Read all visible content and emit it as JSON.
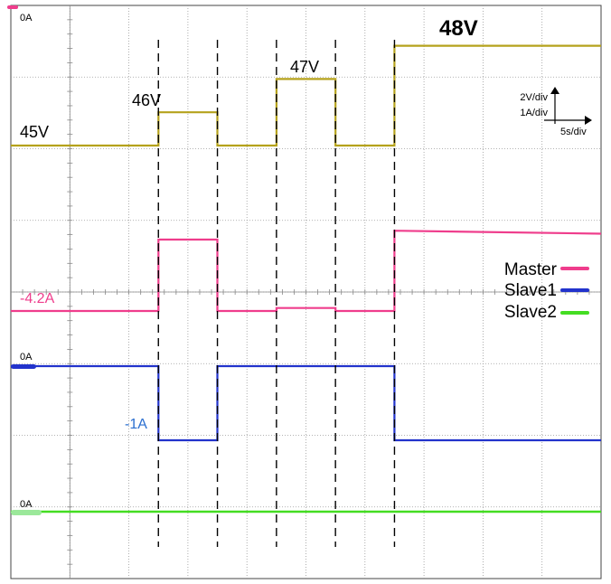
{
  "chart_data": {
    "type": "line",
    "x_unit": "s",
    "time_scale": "5s/div",
    "x_range": [
      -12.5,
      37.5
    ],
    "transitions_s": [
      0,
      5,
      10,
      15,
      20
    ],
    "scale_labels": {
      "voltage": "2V/div",
      "current": "1A/div",
      "time": "5s/div"
    },
    "series": [
      {
        "key": "voltage",
        "color": "#b5a21c",
        "unit": "V",
        "scale_per_div": 2,
        "points": [
          [
            -12.5,
            45
          ],
          [
            0,
            45
          ],
          [
            0,
            46
          ],
          [
            5,
            46
          ],
          [
            5,
            45
          ],
          [
            10,
            45
          ],
          [
            10,
            47
          ],
          [
            15,
            47
          ],
          [
            15,
            45
          ],
          [
            20,
            45
          ],
          [
            20,
            48
          ],
          [
            37.5,
            48
          ]
        ],
        "labels": [
          "45V",
          "46V",
          "47V",
          "48V"
        ]
      },
      {
        "key": "master",
        "name": "Master",
        "color": "#ef3d8c",
        "unit": "A",
        "scale_per_div": 1,
        "zero_label": "0A",
        "points": [
          [
            -12.5,
            -4.2
          ],
          [
            0,
            -4.2
          ],
          [
            0,
            -3.0
          ],
          [
            5,
            -3.0
          ],
          [
            5,
            -4.2
          ],
          [
            10,
            -4.2
          ],
          [
            10,
            -4.15
          ],
          [
            15,
            -4.15
          ],
          [
            15,
            -4.2
          ],
          [
            20,
            -4.2
          ],
          [
            20,
            -2.85
          ],
          [
            37.5,
            -2.9
          ]
        ],
        "value_label": "-4.2A"
      },
      {
        "key": "slave1",
        "name": "Slave1",
        "color": "#2233cc",
        "unit": "A",
        "scale_per_div": 1,
        "zero_label": "0A",
        "points": [
          [
            -12.5,
            0
          ],
          [
            0,
            0
          ],
          [
            0,
            -1
          ],
          [
            5,
            -1
          ],
          [
            5,
            0
          ],
          [
            20,
            0
          ],
          [
            20,
            -1
          ],
          [
            37.5,
            -1
          ]
        ],
        "value_label": "-1A"
      },
      {
        "key": "slave2",
        "name": "Slave2",
        "color": "#44dd22",
        "unit": "A",
        "scale_per_div": 1,
        "zero_label": "0A",
        "points": [
          [
            -12.5,
            0
          ],
          [
            37.5,
            0
          ]
        ]
      }
    ],
    "legend_position": "right",
    "grid": true
  }
}
